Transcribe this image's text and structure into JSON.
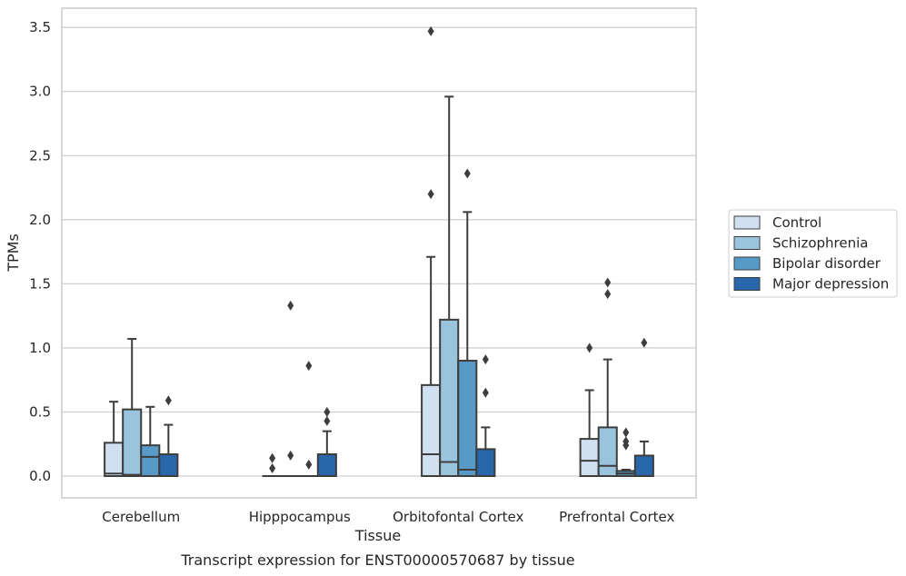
{
  "chart_data": {
    "type": "box",
    "xlabel": "Tissue",
    "ylabel": "TPMs",
    "caption": "Transcript expression for ENST00000570687 by tissue",
    "ylim": [
      -0.17,
      3.65
    ],
    "yticks": [
      "0.0",
      "0.5",
      "1.0",
      "1.5",
      "2.0",
      "2.5",
      "3.0",
      "3.5"
    ],
    "grid": "horizontal",
    "legend_position": "right",
    "categories": [
      "Cerebellum",
      "Hipppocampus",
      "Orbitofontal Cortex",
      "Prefrontal Cortex"
    ],
    "series": [
      {
        "name": "Control",
        "color": "#d0e0f0",
        "boxes": [
          {
            "whislo": 0.0,
            "q1": 0.0,
            "med": 0.02,
            "q3": 0.26,
            "whishi": 0.58,
            "fliers": []
          },
          {
            "whislo": 0.0,
            "q1": 0.0,
            "med": 0.0,
            "q3": 0.0,
            "whishi": 0.0,
            "fliers": [
              0.14,
              0.06
            ]
          },
          {
            "whislo": 0.0,
            "q1": 0.0,
            "med": 0.17,
            "q3": 0.71,
            "whishi": 1.71,
            "fliers": [
              2.2,
              3.47
            ]
          },
          {
            "whislo": 0.0,
            "q1": 0.0,
            "med": 0.12,
            "q3": 0.29,
            "whishi": 0.67,
            "fliers": [
              1.0
            ]
          }
        ]
      },
      {
        "name": "Schizophrenia",
        "color": "#9ac3dd",
        "boxes": [
          {
            "whislo": 0.0,
            "q1": 0.0,
            "med": 0.01,
            "q3": 0.52,
            "whishi": 1.07,
            "fliers": []
          },
          {
            "whislo": 0.0,
            "q1": 0.0,
            "med": 0.0,
            "q3": 0.0,
            "whishi": 0.0,
            "fliers": [
              1.33,
              0.16
            ]
          },
          {
            "whislo": 0.0,
            "q1": 0.0,
            "med": 0.11,
            "q3": 1.22,
            "whishi": 2.96,
            "fliers": []
          },
          {
            "whislo": 0.0,
            "q1": 0.0,
            "med": 0.08,
            "q3": 0.38,
            "whishi": 0.91,
            "fliers": [
              1.51,
              1.42
            ]
          }
        ]
      },
      {
        "name": "Bipolar disorder",
        "color": "#5799c7",
        "boxes": [
          {
            "whislo": 0.0,
            "q1": 0.0,
            "med": 0.15,
            "q3": 0.24,
            "whishi": 0.54,
            "fliers": []
          },
          {
            "whislo": 0.0,
            "q1": 0.0,
            "med": 0.0,
            "q3": 0.0,
            "whishi": 0.0,
            "fliers": [
              0.86,
              0.09
            ]
          },
          {
            "whislo": 0.0,
            "q1": 0.0,
            "med": 0.05,
            "q3": 0.9,
            "whishi": 2.06,
            "fliers": [
              2.36
            ]
          },
          {
            "whislo": 0.0,
            "q1": 0.0,
            "med": 0.02,
            "q3": 0.04,
            "whishi": 0.05,
            "fliers": [
              0.34,
              0.27,
              0.24
            ]
          }
        ]
      },
      {
        "name": "Major depression",
        "color": "#2767aa",
        "boxes": [
          {
            "whislo": 0.0,
            "q1": 0.0,
            "med": 0.0,
            "q3": 0.17,
            "whishi": 0.4,
            "fliers": [
              0.59
            ]
          },
          {
            "whislo": 0.0,
            "q1": 0.0,
            "med": 0.0,
            "q3": 0.17,
            "whishi": 0.35,
            "fliers": [
              0.43,
              0.5
            ]
          },
          {
            "whislo": 0.0,
            "q1": 0.0,
            "med": 0.0,
            "q3": 0.21,
            "whishi": 0.38,
            "fliers": [
              0.65,
              0.91
            ]
          },
          {
            "whislo": 0.0,
            "q1": 0.0,
            "med": 0.0,
            "q3": 0.16,
            "whishi": 0.27,
            "fliers": [
              1.04
            ]
          }
        ]
      }
    ]
  }
}
